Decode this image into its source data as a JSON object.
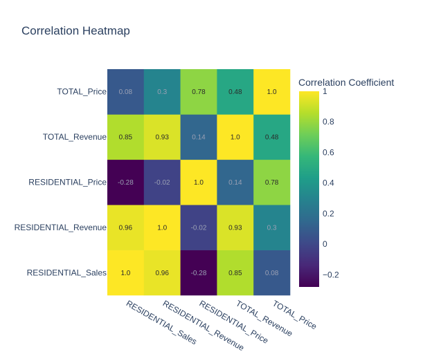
{
  "chart_data": {
    "type": "heatmap",
    "title": "Correlation Heatmap",
    "x_categories": [
      "RESIDENTIAL_Sales",
      "RESIDENTIAL_Revenue",
      "RESIDENTIAL_Price",
      "TOTAL_Revenue",
      "TOTAL_Price"
    ],
    "y_categories": [
      "RESIDENTIAL_Sales",
      "RESIDENTIAL_Revenue",
      "RESIDENTIAL_Price",
      "TOTAL_Revenue",
      "TOTAL_Price"
    ],
    "values": [
      [
        1.0,
        0.96,
        -0.28,
        0.85,
        0.08
      ],
      [
        0.96,
        1.0,
        -0.02,
        0.93,
        0.3
      ],
      [
        -0.28,
        -0.02,
        1.0,
        0.14,
        0.78
      ],
      [
        0.85,
        0.93,
        0.14,
        1.0,
        0.48
      ],
      [
        0.08,
        0.3,
        0.78,
        0.48,
        1.0
      ]
    ],
    "labels": [
      [
        "1.0",
        "0.96",
        "-0.28",
        "0.85",
        "0.08"
      ],
      [
        "0.96",
        "1.0",
        "-0.02",
        "0.93",
        "0.3"
      ],
      [
        "-0.28",
        "-0.02",
        "1.0",
        "0.14",
        "0.78"
      ],
      [
        "0.85",
        "0.93",
        "0.14",
        "1.0",
        "0.48"
      ],
      [
        "0.08",
        "0.3",
        "0.78",
        "0.48",
        "1.0"
      ]
    ],
    "zrange": [
      -0.28,
      1.0
    ],
    "colorscale": "Viridis",
    "colorbar": {
      "title": "Correlation Coefficient",
      "ticks": [
        1,
        0.8,
        0.6,
        0.4,
        0.2,
        0,
        -0.2
      ],
      "tick_labels": [
        "1",
        "0.8",
        "0.6",
        "0.4",
        "0.2",
        "0",
        "−0.2"
      ]
    }
  }
}
